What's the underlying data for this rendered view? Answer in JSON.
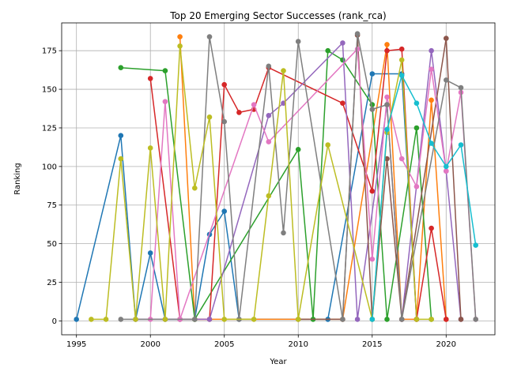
{
  "chart_data": {
    "type": "line",
    "title": "Top 20 Emerging Sector Successes (rank_rca)",
    "xlabel": "Year",
    "ylabel": "Ranking",
    "xlim": [
      1994,
      2023.3
    ],
    "ylim": [
      -9,
      193
    ],
    "xticks": [
      1995,
      2000,
      2005,
      2010,
      2015,
      2020
    ],
    "yticks": [
      0,
      25,
      50,
      75,
      100,
      125,
      150,
      175
    ],
    "grid": true,
    "legend": "none",
    "series": [
      {
        "color": "#1f77b4",
        "points": [
          [
            1995,
            1
          ],
          [
            1998,
            120
          ],
          [
            1999,
            1
          ],
          [
            2000,
            44
          ],
          [
            2001,
            1
          ],
          [
            2002,
            1
          ],
          [
            2003,
            1
          ],
          [
            2004,
            56
          ],
          [
            2005,
            71
          ],
          [
            2006,
            1
          ],
          [
            2012,
            1
          ],
          [
            2015,
            160
          ],
          [
            2017,
            160
          ],
          [
            2018,
            1
          ]
        ]
      },
      {
        "color": "#ff7f0e",
        "points": [
          [
            2002,
            184
          ],
          [
            2003,
            1
          ],
          [
            2013,
            1
          ],
          [
            2016,
            179
          ],
          [
            2017,
            1
          ],
          [
            2018,
            1
          ],
          [
            2019,
            143
          ],
          [
            2020,
            1
          ]
        ]
      },
      {
        "color": "#2ca02c",
        "points": [
          [
            1998,
            164
          ],
          [
            2001,
            162
          ],
          [
            2003,
            1
          ],
          [
            2010,
            111
          ],
          [
            2011,
            1
          ],
          [
            2012,
            175
          ],
          [
            2013,
            169
          ],
          [
            2015,
            140
          ],
          [
            2016,
            1
          ],
          [
            2018,
            125
          ],
          [
            2019,
            1
          ]
        ]
      },
      {
        "color": "#d62728",
        "points": [
          [
            2000,
            157
          ],
          [
            2002,
            1
          ],
          [
            2004,
            1
          ],
          [
            2005,
            153
          ],
          [
            2006,
            135
          ],
          [
            2007,
            137
          ],
          [
            2008,
            164
          ],
          [
            2013,
            141
          ],
          [
            2015,
            84
          ],
          [
            2016,
            175
          ],
          [
            2017,
            176
          ],
          [
            2018,
            1
          ],
          [
            2019,
            60
          ],
          [
            2020,
            1
          ]
        ]
      },
      {
        "color": "#9467bd",
        "points": [
          [
            1999,
            1
          ],
          [
            2001,
            1
          ],
          [
            2004,
            1
          ],
          [
            2008,
            133
          ],
          [
            2009,
            141
          ],
          [
            2013,
            180
          ],
          [
            2014,
            1
          ],
          [
            2016,
            140
          ],
          [
            2017,
            1
          ],
          [
            2019,
            175
          ],
          [
            2020,
            97
          ],
          [
            2021,
            1
          ]
        ]
      },
      {
        "color": "#8c564b",
        "points": [
          [
            2010,
            1
          ],
          [
            2013,
            1
          ],
          [
            2014,
            185
          ],
          [
            2015,
            1
          ],
          [
            2016,
            105
          ],
          [
            2017,
            1
          ],
          [
            2020,
            183
          ],
          [
            2021,
            1
          ]
        ]
      },
      {
        "color": "#e377c2",
        "points": [
          [
            2000,
            1
          ],
          [
            2001,
            142
          ],
          [
            2002,
            1
          ],
          [
            2007,
            140
          ],
          [
            2008,
            116
          ],
          [
            2014,
            176
          ],
          [
            2015,
            40
          ],
          [
            2016,
            145
          ],
          [
            2017,
            105
          ],
          [
            2018,
            87
          ],
          [
            2019,
            163
          ],
          [
            2020,
            97
          ],
          [
            2021,
            148
          ],
          [
            2022,
            1
          ]
        ]
      },
      {
        "color": "#7f7f7f",
        "points": [
          [
            1998,
            1
          ],
          [
            2003,
            1
          ],
          [
            2004,
            184
          ],
          [
            2005,
            129
          ],
          [
            2006,
            1
          ],
          [
            2008,
            165
          ],
          [
            2009,
            57
          ],
          [
            2010,
            181
          ],
          [
            2013,
            1
          ],
          [
            2014,
            186
          ],
          [
            2015,
            137
          ],
          [
            2016,
            140
          ],
          [
            2017,
            1
          ],
          [
            2020,
            156
          ],
          [
            2021,
            151
          ],
          [
            2022,
            1
          ]
        ]
      },
      {
        "color": "#bcbd22",
        "points": [
          [
            1996,
            1
          ],
          [
            1997,
            1
          ],
          [
            1998,
            105
          ],
          [
            1999,
            1
          ],
          [
            2000,
            112
          ],
          [
            2001,
            1
          ],
          [
            2002,
            178
          ],
          [
            2003,
            86
          ],
          [
            2004,
            132
          ],
          [
            2005,
            1
          ],
          [
            2007,
            1
          ],
          [
            2008,
            81
          ],
          [
            2009,
            162
          ],
          [
            2010,
            1
          ],
          [
            2012,
            114
          ],
          [
            2015,
            1
          ],
          [
            2016,
            122
          ],
          [
            2017,
            169
          ],
          [
            2018,
            1
          ],
          [
            2019,
            1
          ]
        ]
      },
      {
        "color": "#17becf",
        "points": [
          [
            2015,
            1
          ],
          [
            2016,
            124
          ],
          [
            2017,
            159
          ],
          [
            2018,
            141
          ],
          [
            2019,
            115
          ],
          [
            2020,
            100
          ],
          [
            2021,
            114
          ],
          [
            2022,
            49
          ]
        ]
      }
    ]
  }
}
